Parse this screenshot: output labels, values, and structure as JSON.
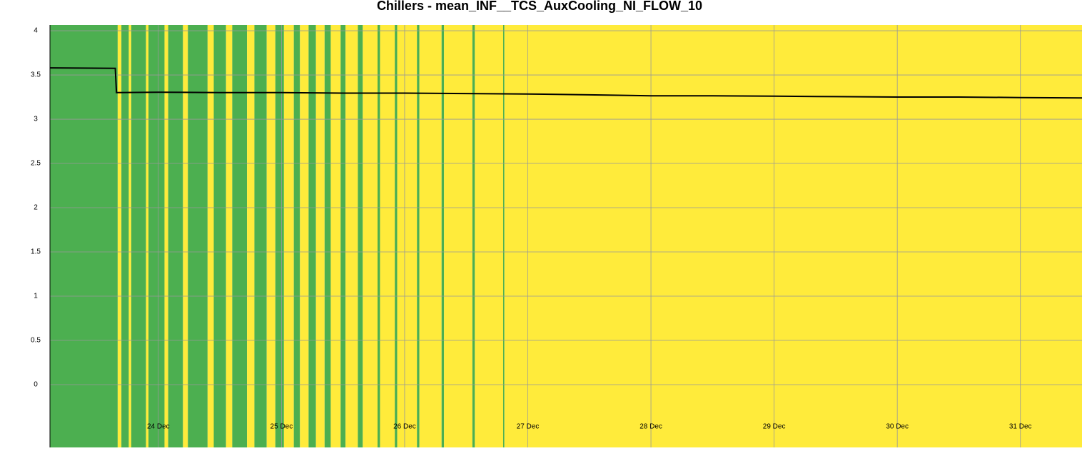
{
  "chart_data": {
    "type": "line",
    "title": "Chillers - mean_INF__TCS_AuxCooling_NI_FLOW_10",
    "x": [
      23.12,
      23.65,
      23.66,
      24,
      24.5,
      25,
      25.5,
      26,
      26.5,
      27,
      27.5,
      28,
      28.5,
      29,
      29.5,
      30,
      30.5,
      31,
      31.5
    ],
    "series": [
      {
        "color": "#000000",
        "values": [
          3.58,
          3.575,
          3.3,
          3.305,
          3.3,
          3.3,
          3.295,
          3.295,
          3.29,
          3.285,
          3.275,
          3.265,
          3.265,
          3.26,
          3.255,
          3.25,
          3.25,
          3.245,
          3.24
        ]
      }
    ],
    "xlim": [
      23.12,
      31.5
    ],
    "xticks": [
      {
        "value": 24,
        "label": "24 Dec"
      },
      {
        "value": 25,
        "label": "25 Dec"
      },
      {
        "value": 26,
        "label": "26 Dec"
      },
      {
        "value": 27,
        "label": "27 Dec"
      },
      {
        "value": 28,
        "label": "28 Dec"
      },
      {
        "value": 29,
        "label": "29 Dec"
      },
      {
        "value": 30,
        "label": "30 Dec"
      },
      {
        "value": 31,
        "label": "31 Dec"
      }
    ],
    "ylim": [
      -0.71,
      4.065
    ],
    "yticks": [
      0,
      0.5,
      1,
      1.5,
      2,
      2.5,
      3,
      3.5,
      4
    ],
    "grid": true,
    "status_bands": {
      "colors": [
        "#ffeb3b",
        "#4caf50"
      ],
      "edges": [
        23.12,
        23.67,
        23.7,
        23.76,
        23.78,
        23.9,
        23.92,
        24.05,
        24.08,
        24.2,
        24.24,
        24.4,
        24.45,
        24.55,
        24.6,
        24.72,
        24.78,
        24.88,
        24.95,
        25.02,
        25.1,
        25.15,
        25.22,
        25.28,
        25.35,
        25.4,
        25.48,
        25.52,
        25.62,
        25.66,
        25.78,
        25.8,
        25.92,
        25.94,
        26.1,
        26.12,
        26.3,
        26.32,
        26.55,
        26.57,
        26.8,
        26.81,
        31.5
      ],
      "states": [
        1,
        0,
        1,
        0,
        1,
        0,
        1,
        0,
        1,
        0,
        1,
        0,
        1,
        0,
        1,
        0,
        1,
        0,
        1,
        0,
        1,
        0,
        1,
        0,
        1,
        0,
        1,
        0,
        1,
        0,
        1,
        0,
        1,
        0,
        1,
        0,
        1,
        0,
        1,
        0,
        1,
        0
      ]
    }
  }
}
